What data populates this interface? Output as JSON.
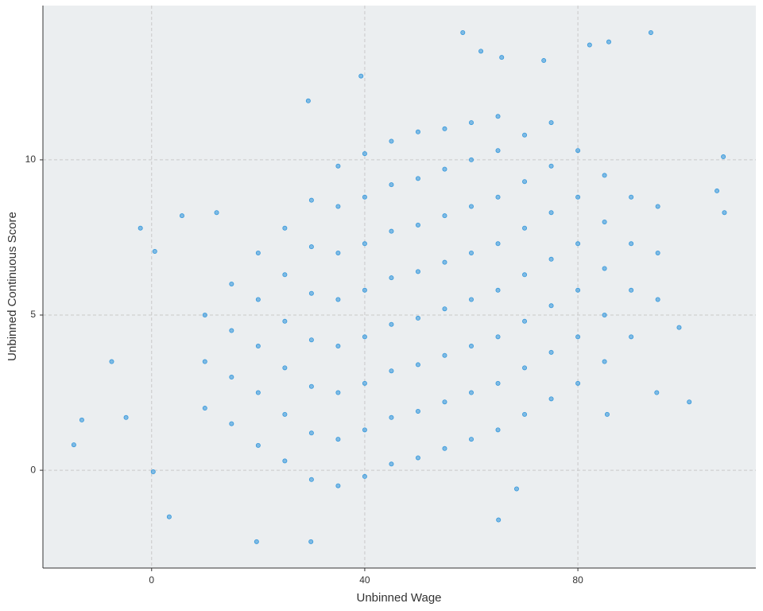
{
  "chart_data": {
    "type": "scatter",
    "x_label": "Unbinned Wage",
    "y_label": "Unbinned Continuous Score",
    "color": "#3598dc",
    "grid": true,
    "xlim": [
      -20.4,
      113.4
    ],
    "xticks": [
      0,
      40,
      80
    ],
    "ylim": [
      -3.15,
      14.97
    ],
    "yticks": [
      0,
      5,
      10
    ],
    "x": [
      10,
      10,
      10,
      15,
      15,
      15,
      15,
      20,
      20,
      20,
      20,
      20,
      25,
      25,
      25,
      25,
      25,
      25,
      30,
      30,
      30,
      30,
      30,
      30,
      30,
      35,
      35,
      35,
      35,
      35,
      35,
      35,
      35,
      40,
      40,
      40,
      40,
      40,
      40,
      40,
      40,
      45,
      45,
      45,
      45,
      45,
      45,
      45,
      45,
      50,
      50,
      50,
      50,
      50,
      50,
      50,
      50,
      55,
      55,
      55,
      55,
      55,
      55,
      55,
      55,
      60,
      60,
      60,
      60,
      60,
      60,
      60,
      60,
      65,
      65,
      65,
      65,
      65,
      65,
      65,
      65,
      70,
      70,
      70,
      70,
      70,
      70,
      70,
      75,
      75,
      75,
      75,
      75,
      75,
      75,
      80,
      80,
      80,
      80,
      80,
      80,
      85,
      85,
      85,
      85,
      85,
      90,
      90,
      90,
      90,
      95,
      95,
      95,
      -14.6,
      -13.1,
      -2.1,
      -7.5,
      58.4,
      93.7,
      61.8,
      65.7,
      39.3,
      29.4,
      82.2,
      85.8,
      107.3,
      107.5,
      106.1,
      100.9,
      99,
      19.7,
      29.9,
      65.1,
      68.5,
      3.3,
      0.3,
      5.7,
      0.6,
      94.8,
      85.5,
      73.6,
      12.2,
      -4.8
    ],
    "values": [
      2.0,
      3.5,
      5.0,
      1.5,
      3.0,
      4.5,
      6.0,
      0.8,
      2.5,
      4.0,
      5.5,
      7.0,
      0.3,
      1.8,
      3.3,
      4.8,
      6.3,
      7.8,
      -0.3,
      1.2,
      2.7,
      4.2,
      5.7,
      7.2,
      8.7,
      -0.5,
      1.0,
      2.5,
      4.0,
      5.5,
      7.0,
      8.5,
      9.8,
      -0.2,
      1.3,
      2.8,
      4.3,
      5.8,
      7.3,
      8.8,
      10.2,
      0.2,
      1.7,
      3.2,
      4.7,
      6.2,
      7.7,
      9.2,
      10.6,
      0.4,
      1.9,
      3.4,
      4.9,
      6.4,
      7.9,
      9.4,
      10.9,
      0.7,
      2.2,
      3.7,
      5.2,
      6.7,
      8.2,
      9.7,
      11.0,
      1.0,
      2.5,
      4.0,
      5.5,
      7.0,
      8.5,
      10.0,
      11.2,
      1.3,
      2.8,
      4.3,
      5.8,
      7.3,
      8.8,
      10.3,
      11.4,
      1.8,
      3.3,
      4.8,
      6.3,
      7.8,
      9.3,
      10.8,
      2.3,
      3.8,
      5.3,
      6.8,
      8.3,
      9.8,
      11.2,
      2.8,
      4.3,
      5.8,
      7.3,
      8.8,
      10.3,
      3.5,
      5.0,
      6.5,
      8.0,
      9.5,
      4.3,
      5.8,
      7.3,
      8.8,
      5.5,
      7.0,
      8.5,
      0.82,
      1.62,
      7.8,
      3.5,
      14.1,
      14.1,
      13.5,
      13.3,
      12.7,
      11.9,
      13.7,
      13.8,
      10.1,
      8.3,
      9.0,
      2.2,
      4.6,
      -2.3,
      -2.3,
      -1.6,
      -0.6,
      -1.5,
      -0.05,
      8.2,
      7.05,
      2.5,
      1.8,
      13.2,
      8.3,
      1.7
    ]
  }
}
